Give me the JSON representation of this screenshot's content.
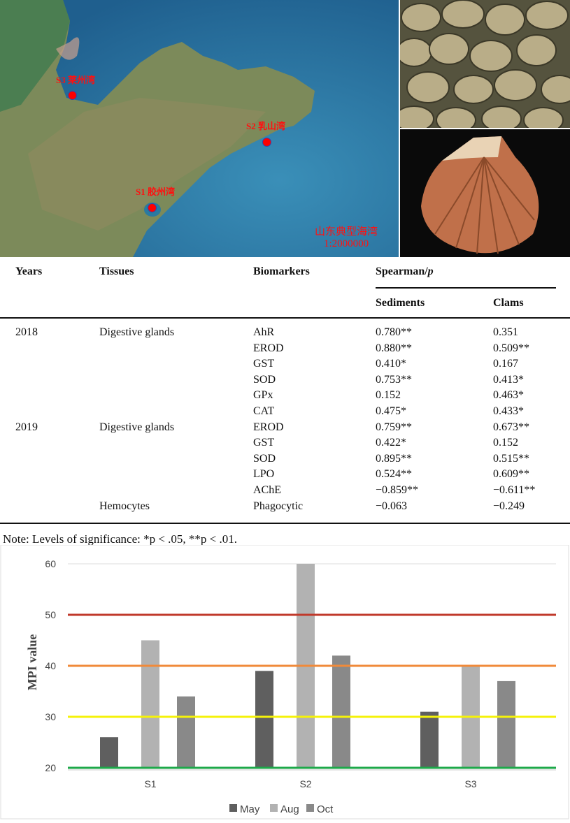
{
  "map": {
    "sites": [
      {
        "label": "S3 莱州湾"
      },
      {
        "label": "S2 乳山湾"
      },
      {
        "label": "S1 胶州湾"
      }
    ],
    "title": "山东典型海湾",
    "scale": "1:2000000"
  },
  "table": {
    "headers": {
      "years": "Years",
      "tissues": "Tissues",
      "biomarkers": "Biomarkers",
      "spearman": "Spearman/",
      "spearman_p": "p",
      "sediments": "Sediments",
      "clams": "Clams"
    },
    "rows": [
      {
        "year": "2018",
        "tissue": "Digestive glands",
        "biomarker": "AhR",
        "sediments": "0.780**",
        "clams": "0.351"
      },
      {
        "year": "",
        "tissue": "",
        "biomarker": "EROD",
        "sediments": "0.880**",
        "clams": "0.509**"
      },
      {
        "year": "",
        "tissue": "",
        "biomarker": "GST",
        "sediments": "0.410*",
        "clams": "0.167"
      },
      {
        "year": "",
        "tissue": "",
        "biomarker": "SOD",
        "sediments": "0.753**",
        "clams": "0.413*"
      },
      {
        "year": "",
        "tissue": "",
        "biomarker": "GPx",
        "sediments": "0.152",
        "clams": "0.463*"
      },
      {
        "year": "",
        "tissue": "",
        "biomarker": "CAT",
        "sediments": "0.475*",
        "clams": "0.433*"
      },
      {
        "year": "2019",
        "tissue": "Digestive glands",
        "biomarker": "EROD",
        "sediments": "0.759**",
        "clams": "0.673**"
      },
      {
        "year": "",
        "tissue": "",
        "biomarker": "GST",
        "sediments": "0.422*",
        "clams": "0.152"
      },
      {
        "year": "",
        "tissue": "",
        "biomarker": "SOD",
        "sediments": "0.895**",
        "clams": "0.515**"
      },
      {
        "year": "",
        "tissue": "",
        "biomarker": "LPO",
        "sediments": "0.524**",
        "clams": "0.609**"
      },
      {
        "year": "",
        "tissue": "",
        "biomarker": "AChE",
        "sediments": "−0.859**",
        "clams": "−0.611**"
      },
      {
        "year": "",
        "tissue": "Hemocytes",
        "biomarker": "Phagocytic",
        "sediments": "−0.063",
        "clams": "−0.249"
      }
    ],
    "note": "Note: Levels of significance: *p < .05, **p < .01."
  },
  "chart_data": {
    "type": "bar",
    "title": "",
    "xlabel": "",
    "ylabel": "MPI value",
    "ylim": [
      20,
      60
    ],
    "yticks": [
      20,
      30,
      40,
      50,
      60
    ],
    "categories": [
      "S1",
      "S2",
      "S3"
    ],
    "series": [
      {
        "name": "May",
        "color": "#5f5f5f",
        "values": [
          26,
          39,
          31
        ]
      },
      {
        "name": "Aug",
        "color": "#b2b2b2",
        "values": [
          45,
          60,
          40
        ]
      },
      {
        "name": "Oct",
        "color": "#898989",
        "values": [
          34,
          42,
          37
        ]
      }
    ],
    "reference_lines": [
      {
        "value": 20,
        "color": "#1ea84a"
      },
      {
        "value": 30,
        "color": "#f5f20a"
      },
      {
        "value": 40,
        "color": "#f08a3a"
      },
      {
        "value": 50,
        "color": "#c0392b"
      }
    ],
    "legend": "bottom",
    "grid": false
  }
}
